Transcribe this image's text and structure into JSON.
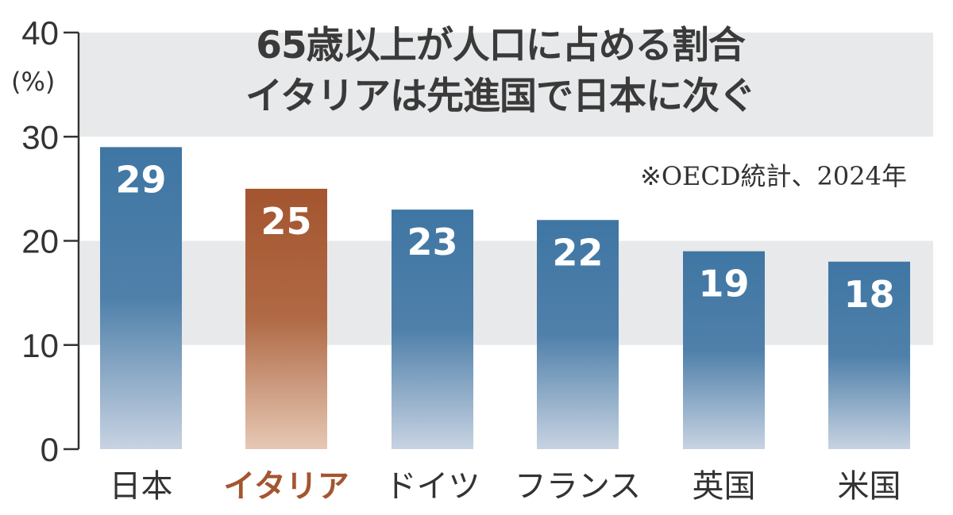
{
  "chart_data": {
    "type": "bar",
    "title": "65歳以上が人口に占める割合",
    "subtitle": "イタリアは先進国で日本に次ぐ",
    "annotation": "※OECD統計、2024年",
    "ylabel": "(%)",
    "ylim": [
      0,
      40
    ],
    "yticks": [
      0,
      10,
      20,
      30,
      40
    ],
    "categories": [
      "日本",
      "イタリア",
      "ドイツ",
      "フランス",
      "英国",
      "米国"
    ],
    "values": [
      29,
      25,
      23,
      22,
      19,
      18
    ],
    "highlight": "イタリア",
    "grid": "alternating horizontal bands",
    "legend": "none"
  },
  "colors": {
    "bar": "#3f76a3",
    "bar_light": "#c6d2e2",
    "highlight": "#a4552f",
    "highlight_light": "#e6c8b5",
    "band": "#e8e9ea",
    "text": "#333333"
  }
}
